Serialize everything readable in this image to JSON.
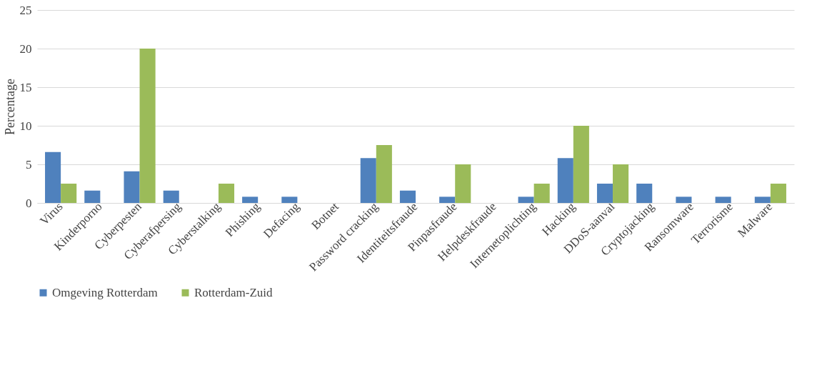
{
  "chart_data": {
    "type": "bar",
    "ylabel": "Percentage",
    "categories": [
      "Virus",
      "Kinderporno",
      "Cyberpesten",
      "Cyberafpersing",
      "Cyberstalking",
      "Phishing",
      "Defacing",
      "Botnet",
      "Password cracking",
      "Identiteitsfraude",
      "Pinpasfraude",
      "Helpdeskfraude",
      "Internetoplichting",
      "Hacking",
      "DDoS-aanval",
      "Cryptojacking",
      "Ransomware",
      "Terrorisme",
      "Malware"
    ],
    "series": [
      {
        "name": "Omgeving Rotterdam",
        "color": "#4f81bd",
        "values": [
          6.6,
          1.6,
          4.1,
          1.6,
          0,
          0.8,
          0.8,
          0,
          5.8,
          1.6,
          0.8,
          0,
          0.8,
          5.8,
          2.5,
          2.5,
          0.8,
          0.8,
          0.8
        ]
      },
      {
        "name": "Rotterdam-Zuid",
        "color": "#9bbb59",
        "values": [
          2.5,
          0,
          20,
          0,
          2.5,
          0,
          0,
          0,
          7.5,
          0,
          5,
          0,
          2.5,
          10,
          5,
          0,
          0,
          0,
          2.5
        ]
      }
    ],
    "ylim": [
      0,
      25
    ],
    "yticks": [
      0,
      5,
      10,
      15,
      20,
      25
    ],
    "grid": "y",
    "legend": "bottom"
  }
}
